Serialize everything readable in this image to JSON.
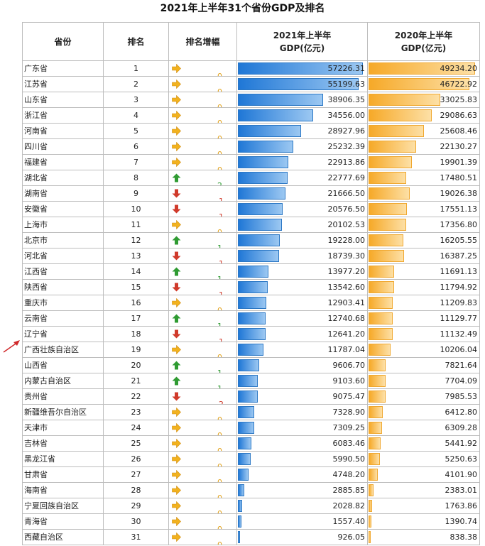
{
  "title": "2021年上半年31个省份GDP及排名",
  "headers": {
    "province": "省份",
    "rank": "排名",
    "rank_change": "排名增幅",
    "gdp2021_line1": "2021年上半年",
    "gdp2021_line2": "GDP(亿元)",
    "gdp2020_line1": "2020年上半年",
    "gdp2020_line2": "GDP(亿元)"
  },
  "colors": {
    "up": "#2f9b32",
    "down": "#d03a2b",
    "flat": "#f2b21e",
    "bar2021": "#1f77d6",
    "bar2020": "#f6a928"
  },
  "highlighted_row": "广西壮族自治区",
  "rows": [
    {
      "province": "广东省",
      "rank": "1",
      "change": "0",
      "gdp2021": "57226.31",
      "gdp2020": "49234.20"
    },
    {
      "province": "江苏省",
      "rank": "2",
      "change": "0",
      "gdp2021": "55199.63",
      "gdp2020": "46722.92"
    },
    {
      "province": "山东省",
      "rank": "3",
      "change": "0",
      "gdp2021": "38906.35",
      "gdp2020": "33025.83"
    },
    {
      "province": "浙江省",
      "rank": "4",
      "change": "0",
      "gdp2021": "34556.00",
      "gdp2020": "29086.63"
    },
    {
      "province": "河南省",
      "rank": "5",
      "change": "0",
      "gdp2021": "28927.96",
      "gdp2020": "25608.46"
    },
    {
      "province": "四川省",
      "rank": "6",
      "change": "0",
      "gdp2021": "25232.39",
      "gdp2020": "22130.27"
    },
    {
      "province": "福建省",
      "rank": "7",
      "change": "0",
      "gdp2021": "22913.86",
      "gdp2020": "19901.39"
    },
    {
      "province": "湖北省",
      "rank": "8",
      "change": "2",
      "gdp2021": "22777.69",
      "gdp2020": "17480.51"
    },
    {
      "province": "湖南省",
      "rank": "9",
      "change": "-1",
      "gdp2021": "21666.50",
      "gdp2020": "19026.38"
    },
    {
      "province": "安徽省",
      "rank": "10",
      "change": "-1",
      "gdp2021": "20576.50",
      "gdp2020": "17551.13"
    },
    {
      "province": "上海市",
      "rank": "11",
      "change": "0",
      "gdp2021": "20102.53",
      "gdp2020": "17356.80"
    },
    {
      "province": "北京市",
      "rank": "12",
      "change": "1",
      "gdp2021": "19228.00",
      "gdp2020": "16205.55"
    },
    {
      "province": "河北省",
      "rank": "13",
      "change": "-1",
      "gdp2021": "18739.30",
      "gdp2020": "16387.25"
    },
    {
      "province": "江西省",
      "rank": "14",
      "change": "1",
      "gdp2021": "13977.20",
      "gdp2020": "11691.13"
    },
    {
      "province": "陕西省",
      "rank": "15",
      "change": "-1",
      "gdp2021": "13542.60",
      "gdp2020": "11794.92"
    },
    {
      "province": "重庆市",
      "rank": "16",
      "change": "0",
      "gdp2021": "12903.41",
      "gdp2020": "11209.83"
    },
    {
      "province": "云南省",
      "rank": "17",
      "change": "1",
      "gdp2021": "12740.68",
      "gdp2020": "11129.77"
    },
    {
      "province": "辽宁省",
      "rank": "18",
      "change": "-1",
      "gdp2021": "12641.20",
      "gdp2020": "11132.49"
    },
    {
      "province": "广西壮族自治区",
      "rank": "19",
      "change": "0",
      "gdp2021": "11787.04",
      "gdp2020": "10206.04"
    },
    {
      "province": "山西省",
      "rank": "20",
      "change": "1",
      "gdp2021": "9606.70",
      "gdp2020": "7821.64"
    },
    {
      "province": "内蒙古自治区",
      "rank": "21",
      "change": "1",
      "gdp2021": "9103.60",
      "gdp2020": "7704.09"
    },
    {
      "province": "贵州省",
      "rank": "22",
      "change": "-2",
      "gdp2021": "9075.47",
      "gdp2020": "7985.53"
    },
    {
      "province": "新疆维吾尔自治区",
      "rank": "23",
      "change": "0",
      "gdp2021": "7328.90",
      "gdp2020": "6412.80"
    },
    {
      "province": "天津市",
      "rank": "24",
      "change": "0",
      "gdp2021": "7309.25",
      "gdp2020": "6309.28"
    },
    {
      "province": "吉林省",
      "rank": "25",
      "change": "0",
      "gdp2021": "6083.46",
      "gdp2020": "5441.92"
    },
    {
      "province": "黑龙江省",
      "rank": "26",
      "change": "0",
      "gdp2021": "5990.50",
      "gdp2020": "5250.63"
    },
    {
      "province": "甘肃省",
      "rank": "27",
      "change": "0",
      "gdp2021": "4748.20",
      "gdp2020": "4101.90"
    },
    {
      "province": "海南省",
      "rank": "28",
      "change": "0",
      "gdp2021": "2885.85",
      "gdp2020": "2383.01"
    },
    {
      "province": "宁夏回族自治区",
      "rank": "29",
      "change": "0",
      "gdp2021": "2028.82",
      "gdp2020": "1763.86"
    },
    {
      "province": "青海省",
      "rank": "30",
      "change": "0",
      "gdp2021": "1557.40",
      "gdp2020": "1390.74"
    },
    {
      "province": "西藏自治区",
      "rank": "31",
      "change": "0",
      "gdp2021": "926.05",
      "gdp2020": "838.38"
    }
  ]
}
